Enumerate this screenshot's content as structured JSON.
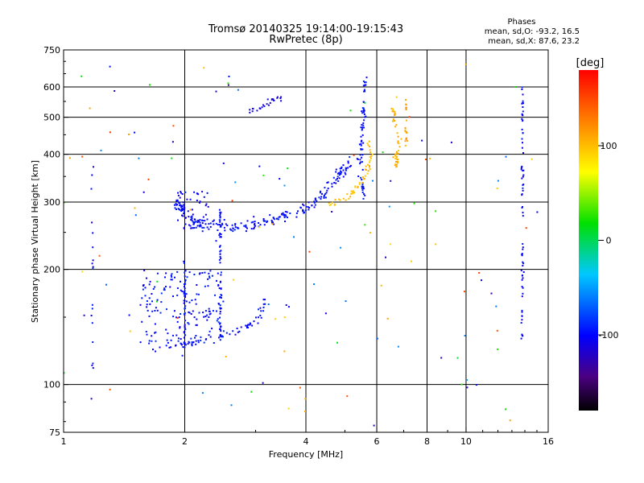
{
  "chart_data": {
    "type": "scatter",
    "title": "Tromsø 20140325 19:14:00-19:15:43",
    "subtitle": "RwPretec (8p)",
    "xlabel": "Frequency [MHz]",
    "ylabel": "Stationary phase Virtual Height [km]",
    "x_scale": "log",
    "y_scale": "log",
    "xlim": [
      1,
      16
    ],
    "ylim": [
      75,
      750
    ],
    "x_ticks": [
      "1",
      "2",
      "4",
      "6",
      "8",
      "10",
      "16"
    ],
    "y_ticks": [
      "75",
      "100",
      "200",
      "300",
      "400",
      "500",
      "600",
      "750"
    ],
    "grid": true,
    "stats": {
      "heading": "Phases",
      "o_line": "mean, sd,O: -93.2, 16.5",
      "x_line": "mean, sd,X:  87.6, 23.2"
    },
    "colorbar": {
      "label": "[deg]",
      "range": [
        -180,
        180
      ],
      "ticks": [
        "100",
        "0",
        "-100"
      ],
      "tick_values": [
        100,
        0,
        -100
      ]
    },
    "traces": [
      {
        "kind": "band",
        "phase": -100,
        "points": [
          [
            1.6,
            123
          ],
          [
            1.8,
            125
          ],
          [
            2.0,
            127
          ],
          [
            2.2,
            130
          ],
          [
            2.5,
            134
          ],
          [
            2.8,
            140
          ],
          [
            3.0,
            147
          ],
          [
            3.1,
            155
          ],
          [
            3.15,
            165
          ]
        ],
        "spread": 0.02,
        "n": 60
      },
      {
        "kind": "cloud",
        "phase": -95,
        "x": [
          1.55,
          2.5
        ],
        "y": [
          128,
          200
        ],
        "n": 170
      },
      {
        "kind": "column",
        "phase": -100,
        "x": 2.0,
        "y": [
          125,
          210
        ],
        "n": 40
      },
      {
        "kind": "column",
        "phase": -100,
        "x": 2.45,
        "y": [
          130,
          290
        ],
        "n": 55
      },
      {
        "kind": "band",
        "phase": -98,
        "points": [
          [
            1.9,
            300
          ],
          [
            2.0,
            285
          ],
          [
            2.1,
            270
          ],
          [
            2.2,
            262
          ],
          [
            2.5,
            258
          ],
          [
            2.8,
            258
          ],
          [
            3.0,
            262
          ],
          [
            3.3,
            270
          ],
          [
            3.6,
            278
          ],
          [
            4.0,
            290
          ],
          [
            4.3,
            305
          ],
          [
            4.6,
            330
          ],
          [
            4.9,
            360
          ],
          [
            5.1,
            380
          ]
        ],
        "spread": 0.035,
        "n": 240
      },
      {
        "kind": "cloud",
        "phase": -105,
        "x": [
          1.9,
          2.3
        ],
        "y": [
          255,
          320
        ],
        "n": 45
      },
      {
        "kind": "band",
        "phase": -110,
        "points": [
          [
            2.9,
            520
          ],
          [
            3.1,
            530
          ],
          [
            3.3,
            550
          ],
          [
            3.5,
            565
          ]
        ],
        "spread": 0.02,
        "n": 25
      },
      {
        "kind": "band",
        "phase": -95,
        "points": [
          [
            5.6,
            650
          ],
          [
            5.6,
            560
          ],
          [
            5.55,
            480
          ],
          [
            5.5,
            420
          ],
          [
            5.45,
            380
          ],
          [
            5.5,
            330
          ],
          [
            5.6,
            305
          ]
        ],
        "spread": 0.02,
        "n": 70
      },
      {
        "kind": "band",
        "phase": 100,
        "points": [
          [
            4.5,
            290
          ],
          [
            4.8,
            300
          ],
          [
            5.1,
            310
          ],
          [
            5.4,
            330
          ],
          [
            5.7,
            360
          ],
          [
            5.8,
            400
          ],
          [
            5.7,
            430
          ]
        ],
        "spread": 0.02,
        "n": 55
      },
      {
        "kind": "band",
        "phase": 105,
        "points": [
          [
            6.7,
            560
          ],
          [
            6.6,
            520
          ],
          [
            6.7,
            480
          ],
          [
            6.8,
            440
          ],
          [
            6.75,
            400
          ],
          [
            6.7,
            370
          ]
        ],
        "spread": 0.025,
        "n": 45
      },
      {
        "kind": "column",
        "phase": 110,
        "x": 7.1,
        "y": [
          420,
          560
        ],
        "n": 20
      },
      {
        "kind": "column",
        "phase": -100,
        "x": 13.8,
        "y": [
          130,
          620
        ],
        "n": 70
      },
      {
        "kind": "column",
        "phase": -100,
        "x": 1.18,
        "y": [
          110,
          420
        ],
        "n": 18
      },
      {
        "kind": "noise",
        "x": [
          1.0,
          16.0
        ],
        "y": [
          78,
          700
        ],
        "n": 130
      }
    ]
  }
}
